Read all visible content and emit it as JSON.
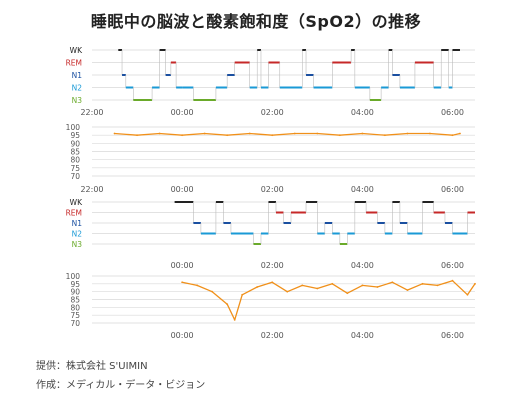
{
  "title": "睡眠中の脳波と酸素飽和度（SpO2）の推移",
  "credits": {
    "provider": "提供：株式会社 S'UIMIN",
    "author": "作成：メディカル・データ・ビジョン"
  },
  "colors": {
    "WK": "#222222",
    "REM": "#c62828",
    "N1": "#1a4fa0",
    "N2": "#1a9ad6",
    "N3": "#6aaa2a",
    "spo2": "#f0901a",
    "grid": "#d9d9d9",
    "axis": "#555555"
  },
  "chart_data": [
    {
      "type": "line",
      "id": "hypnogram-1",
      "stages": [
        "WK",
        "REM",
        "N1",
        "N2",
        "N3"
      ],
      "x_ticks": [
        "22:00",
        "00:00",
        "02:00",
        "04:00",
        "06:00"
      ],
      "xlim": [
        "22:00",
        "06:30"
      ],
      "series": [
        {
          "segments": [
            [
              "22:35",
              "22:40",
              "WK"
            ],
            [
              "22:40",
              "22:45",
              "N1"
            ],
            [
              "22:45",
              "22:55",
              "N2"
            ],
            [
              "22:55",
              "23:20",
              "N3"
            ],
            [
              "23:20",
              "23:30",
              "N2"
            ],
            [
              "23:30",
              "23:38",
              "WK"
            ],
            [
              "23:38",
              "23:45",
              "N1"
            ],
            [
              "23:45",
              "23:52",
              "REM"
            ],
            [
              "23:52",
              "00:00",
              "N2"
            ],
            [
              "00:00",
              "00:15",
              "N2"
            ],
            [
              "00:15",
              "00:45",
              "N3"
            ],
            [
              "00:45",
              "01:00",
              "N2"
            ],
            [
              "01:00",
              "01:10",
              "N1"
            ],
            [
              "01:10",
              "01:30",
              "REM"
            ],
            [
              "01:30",
              "01:40",
              "N2"
            ],
            [
              "01:40",
              "01:45",
              "WK"
            ],
            [
              "01:45",
              "01:55",
              "N2"
            ],
            [
              "01:55",
              "02:10",
              "REM"
            ],
            [
              "02:10",
              "02:40",
              "N2"
            ],
            [
              "02:40",
              "02:45",
              "WK"
            ],
            [
              "02:45",
              "02:55",
              "N1"
            ],
            [
              "02:55",
              "03:20",
              "N2"
            ],
            [
              "03:20",
              "03:45",
              "REM"
            ],
            [
              "03:45",
              "03:50",
              "WK"
            ],
            [
              "03:50",
              "04:10",
              "N2"
            ],
            [
              "04:10",
              "04:25",
              "N3"
            ],
            [
              "04:25",
              "04:35",
              "N2"
            ],
            [
              "04:35",
              "04:40",
              "WK"
            ],
            [
              "04:40",
              "04:50",
              "N1"
            ],
            [
              "04:50",
              "05:10",
              "N2"
            ],
            [
              "05:10",
              "05:35",
              "REM"
            ],
            [
              "05:35",
              "05:45",
              "N2"
            ],
            [
              "05:45",
              "05:55",
              "WK"
            ],
            [
              "05:55",
              "06:00",
              "N2"
            ],
            [
              "06:00",
              "06:10",
              "WK"
            ]
          ]
        }
      ]
    },
    {
      "type": "line",
      "id": "spo2-1",
      "ylabel": "",
      "y_ticks": [
        100,
        95,
        90,
        85,
        80,
        75,
        70
      ],
      "ylim": [
        70,
        100
      ],
      "x_ticks": [
        "22:00",
        "00:00",
        "02:00",
        "04:00",
        "06:00"
      ],
      "xlim": [
        "22:00",
        "06:30"
      ],
      "series": [
        {
          "x": [
            "22:30",
            "23:00",
            "23:30",
            "00:00",
            "00:30",
            "01:00",
            "01:30",
            "02:00",
            "02:30",
            "03:00",
            "03:30",
            "04:00",
            "04:30",
            "05:00",
            "05:30",
            "06:00",
            "06:10"
          ],
          "values": [
            96,
            95,
            96,
            95,
            96,
            95,
            96,
            95,
            96,
            96,
            95,
            96,
            95,
            96,
            96,
            95,
            96
          ]
        }
      ]
    },
    {
      "type": "line",
      "id": "hypnogram-2",
      "stages": [
        "WK",
        "REM",
        "N1",
        "N2",
        "N3"
      ],
      "x_ticks": [
        "00:00",
        "02:00",
        "04:00",
        "06:00"
      ],
      "xlim": [
        "22:00",
        "06:30"
      ],
      "series": [
        {
          "segments": [
            [
              "23:50",
              "00:15",
              "WK"
            ],
            [
              "00:15",
              "00:25",
              "N1"
            ],
            [
              "00:25",
              "00:45",
              "N2"
            ],
            [
              "00:45",
              "00:55",
              "WK"
            ],
            [
              "00:55",
              "01:05",
              "N1"
            ],
            [
              "01:05",
              "01:35",
              "N2"
            ],
            [
              "01:35",
              "01:45",
              "N3"
            ],
            [
              "01:45",
              "01:55",
              "N2"
            ],
            [
              "01:55",
              "02:05",
              "WK"
            ],
            [
              "02:05",
              "02:15",
              "REM"
            ],
            [
              "02:15",
              "02:25",
              "N1"
            ],
            [
              "02:25",
              "02:45",
              "REM"
            ],
            [
              "02:45",
              "03:00",
              "WK"
            ],
            [
              "03:00",
              "03:10",
              "N2"
            ],
            [
              "03:10",
              "03:20",
              "N1"
            ],
            [
              "03:20",
              "03:30",
              "N2"
            ],
            [
              "03:30",
              "03:40",
              "N3"
            ],
            [
              "03:40",
              "03:50",
              "N2"
            ],
            [
              "03:50",
              "04:05",
              "WK"
            ],
            [
              "04:05",
              "04:20",
              "REM"
            ],
            [
              "04:20",
              "04:30",
              "N1"
            ],
            [
              "04:30",
              "04:40",
              "N2"
            ],
            [
              "04:40",
              "04:50",
              "WK"
            ],
            [
              "04:50",
              "05:00",
              "N1"
            ],
            [
              "05:00",
              "05:20",
              "N2"
            ],
            [
              "05:20",
              "05:35",
              "WK"
            ],
            [
              "05:35",
              "05:50",
              "REM"
            ],
            [
              "05:50",
              "06:00",
              "N1"
            ],
            [
              "06:00",
              "06:20",
              "N2"
            ],
            [
              "06:20",
              "06:30",
              "REM"
            ]
          ]
        }
      ]
    },
    {
      "type": "line",
      "id": "spo2-2",
      "ylabel": "",
      "y_ticks": [
        100,
        95,
        90,
        85,
        80,
        75,
        70
      ],
      "ylim": [
        70,
        100
      ],
      "x_ticks": [
        "00:00",
        "02:00",
        "04:00",
        "06:00"
      ],
      "xlim": [
        "22:00",
        "06:30"
      ],
      "series": [
        {
          "x": [
            "00:00",
            "00:20",
            "00:40",
            "01:00",
            "01:10",
            "01:20",
            "01:40",
            "02:00",
            "02:20",
            "02:40",
            "03:00",
            "03:20",
            "03:40",
            "04:00",
            "04:20",
            "04:40",
            "05:00",
            "05:20",
            "05:40",
            "06:00",
            "06:20",
            "06:30"
          ],
          "values": [
            96,
            94,
            90,
            82,
            72,
            88,
            93,
            96,
            90,
            94,
            92,
            95,
            89,
            94,
            93,
            96,
            91,
            95,
            94,
            97,
            88,
            95
          ]
        }
      ]
    }
  ]
}
